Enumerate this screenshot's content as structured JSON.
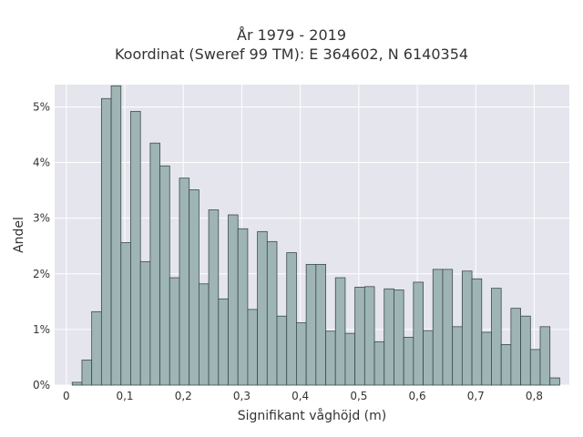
{
  "chart_data": {
    "type": "bar",
    "title": "År 1979 - 2019",
    "subtitle": "Koordinat (Sweref 99 TM): E 364602, N 6140354",
    "xlabel": "Signifikant våghöjd (m)",
    "ylabel": "Andel",
    "xlim": [
      -0.02,
      0.86
    ],
    "ylim": [
      0,
      5.4
    ],
    "x_ticks": [
      0,
      0.1,
      0.2,
      0.3,
      0.4,
      0.5,
      0.6,
      0.7,
      0.8
    ],
    "x_tick_labels": [
      "0",
      "0,1",
      "0,2",
      "0,3",
      "0,4",
      "0,5",
      "0,6",
      "0,7",
      "0,8"
    ],
    "y_ticks": [
      0,
      1,
      2,
      3,
      4,
      5
    ],
    "y_tick_labels": [
      "0%",
      "1%",
      "2%",
      "3%",
      "4%",
      "5%"
    ],
    "bin_width": 0.01667,
    "bin_start": 0.01,
    "values": [
      0.05,
      0.45,
      1.32,
      5.15,
      5.38,
      2.56,
      4.92,
      2.22,
      4.35,
      3.94,
      1.93,
      3.72,
      3.51,
      1.82,
      3.15,
      1.55,
      3.06,
      2.81,
      1.36,
      2.76,
      2.58,
      1.24,
      2.38,
      1.12,
      2.17,
      2.17,
      0.97,
      1.93,
      0.93,
      1.76,
      1.77,
      0.78,
      1.73,
      1.71,
      0.86,
      1.85,
      0.98,
      2.08,
      2.08,
      1.05,
      2.05,
      1.91,
      0.95,
      1.74,
      0.73,
      1.38,
      1.24,
      0.64,
      1.05,
      0.13
    ],
    "colors": {
      "plot_bg": "#e5e5ee",
      "grid": "#ffffff",
      "bar_fill": "#9fb5b5",
      "bar_stroke": "#3a4a4a"
    },
    "grid": true
  }
}
